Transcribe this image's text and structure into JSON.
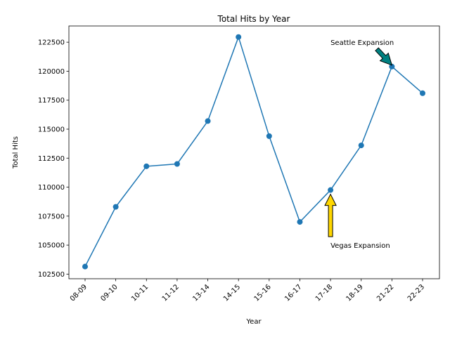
{
  "chart_data": {
    "type": "line",
    "title": "Total Hits by Year",
    "xlabel": "Year",
    "ylabel": "Total Hits",
    "categories": [
      "08-09",
      "09-10",
      "10-11",
      "11-12",
      "13-14",
      "14-15",
      "15-16",
      "16-17",
      "17-18",
      "18-19",
      "21-22",
      "22-23"
    ],
    "series": [
      {
        "values": [
          103150,
          108300,
          111800,
          112000,
          115700,
          122950,
          114400,
          107000,
          109750,
          113600,
          120400,
          118100
        ]
      }
    ],
    "ylim": [
      102100,
      123900
    ],
    "yticks": [
      102500,
      105000,
      107500,
      110000,
      112500,
      115000,
      117500,
      120000,
      122500
    ],
    "grid": false,
    "line_color": "#1f77b4",
    "annotations": [
      {
        "text": "Seattle Expansion",
        "category": "21-22",
        "value": 120400,
        "text_value": 122500,
        "text_category_index": 8,
        "arrow_color": "#008080"
      },
      {
        "text": "Vegas Expansion",
        "category": "17-18",
        "value": 109750,
        "text_value": 105000,
        "text_category_index": 8,
        "arrow_color": "#ffd700"
      }
    ]
  }
}
